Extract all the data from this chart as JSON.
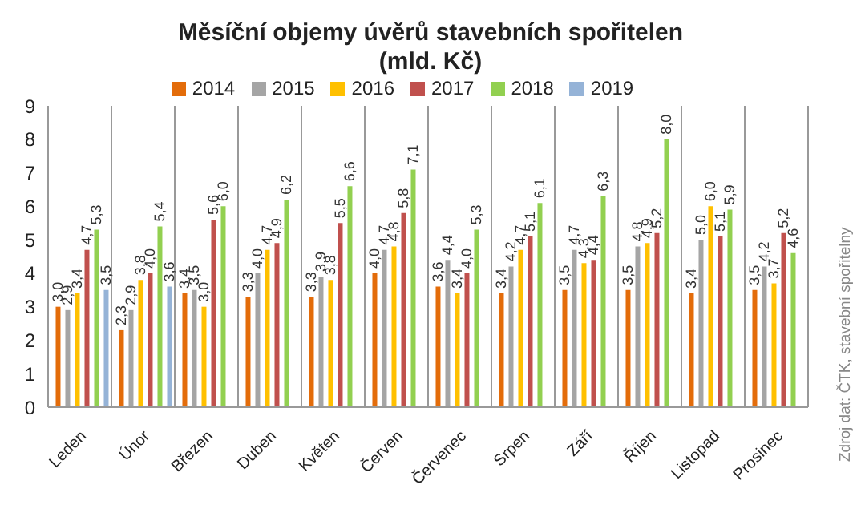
{
  "chart_data": {
    "type": "bar",
    "title": "Měsíční objemy úvěrů stavebních spořitelen",
    "subtitle": "(mld. Kč)",
    "categories": [
      "Leden",
      "Únor",
      "Březen",
      "Duben",
      "Květen",
      "Červen",
      "Červenec",
      "Srpen",
      "Září",
      "Říjen",
      "Listopad",
      "Prosinec"
    ],
    "series": [
      {
        "name": "2014",
        "color": "#e36c0a",
        "values": [
          3.0,
          2.3,
          3.4,
          3.3,
          3.3,
          4.0,
          3.6,
          3.4,
          3.5,
          3.5,
          3.4,
          3.5
        ],
        "value_labels": [
          "3,0",
          "2,3",
          "3,4",
          "3,3",
          "3,3",
          "4,0",
          "3,6",
          "3,4",
          "3,5",
          "3,5",
          "3,4",
          "3,5"
        ]
      },
      {
        "name": "2015",
        "color": "#a5a5a5",
        "values": [
          2.9,
          2.9,
          3.5,
          4.0,
          3.9,
          4.7,
          4.4,
          4.2,
          4.7,
          4.8,
          5.0,
          4.2
        ],
        "value_labels": [
          "2,9",
          "2,9",
          "3,5",
          "4,0",
          "3,9",
          "4,7",
          "4,4",
          "4,2",
          "4,7",
          "4,8",
          "5,0",
          "4,2"
        ]
      },
      {
        "name": "2016",
        "color": "#ffc000",
        "values": [
          3.4,
          3.8,
          3.0,
          4.7,
          3.8,
          4.8,
          3.4,
          4.7,
          4.3,
          4.9,
          6.0,
          3.7
        ],
        "value_labels": [
          "3,4",
          "3,8",
          "3,0",
          "4,7",
          "3,8",
          "4,8",
          "3,4",
          "4,7",
          "4,3",
          "4,9",
          "6,0",
          "3,7"
        ]
      },
      {
        "name": "2017",
        "color": "#c0504d",
        "values": [
          4.7,
          4.0,
          5.6,
          4.9,
          5.5,
          5.8,
          4.0,
          5.1,
          4.4,
          5.2,
          5.1,
          5.2
        ],
        "value_labels": [
          "4,7",
          "4,0",
          "5,6",
          "4,9",
          "5,5",
          "5,8",
          "4,0",
          "5,1",
          "4,4",
          "5,2",
          "5,1",
          "5,2"
        ]
      },
      {
        "name": "2018",
        "color": "#92d050",
        "values": [
          5.3,
          5.4,
          6.0,
          6.2,
          6.6,
          7.1,
          5.3,
          6.1,
          6.3,
          8.0,
          5.9,
          4.6
        ],
        "value_labels": [
          "5,3",
          "5,4",
          "6,0",
          "6,2",
          "6,6",
          "7,1",
          "5,3",
          "6,1",
          "6,3",
          "8,0",
          "5,9",
          "4,6"
        ]
      },
      {
        "name": "2019",
        "color": "#95b3d7",
        "values": [
          3.5,
          3.6,
          null,
          null,
          null,
          null,
          null,
          null,
          null,
          null,
          null,
          null
        ],
        "value_labels": [
          "3,5",
          "3,6",
          null,
          null,
          null,
          null,
          null,
          null,
          null,
          null,
          null,
          null
        ]
      }
    ],
    "ylim": [
      0,
      9
    ],
    "yticks": [
      0,
      1,
      2,
      3,
      4,
      5,
      6,
      7,
      8,
      9
    ],
    "grid": "x",
    "legend": "top",
    "annotations": [
      "Zdroj dat: ČTK, stavební spořitelny"
    ]
  }
}
